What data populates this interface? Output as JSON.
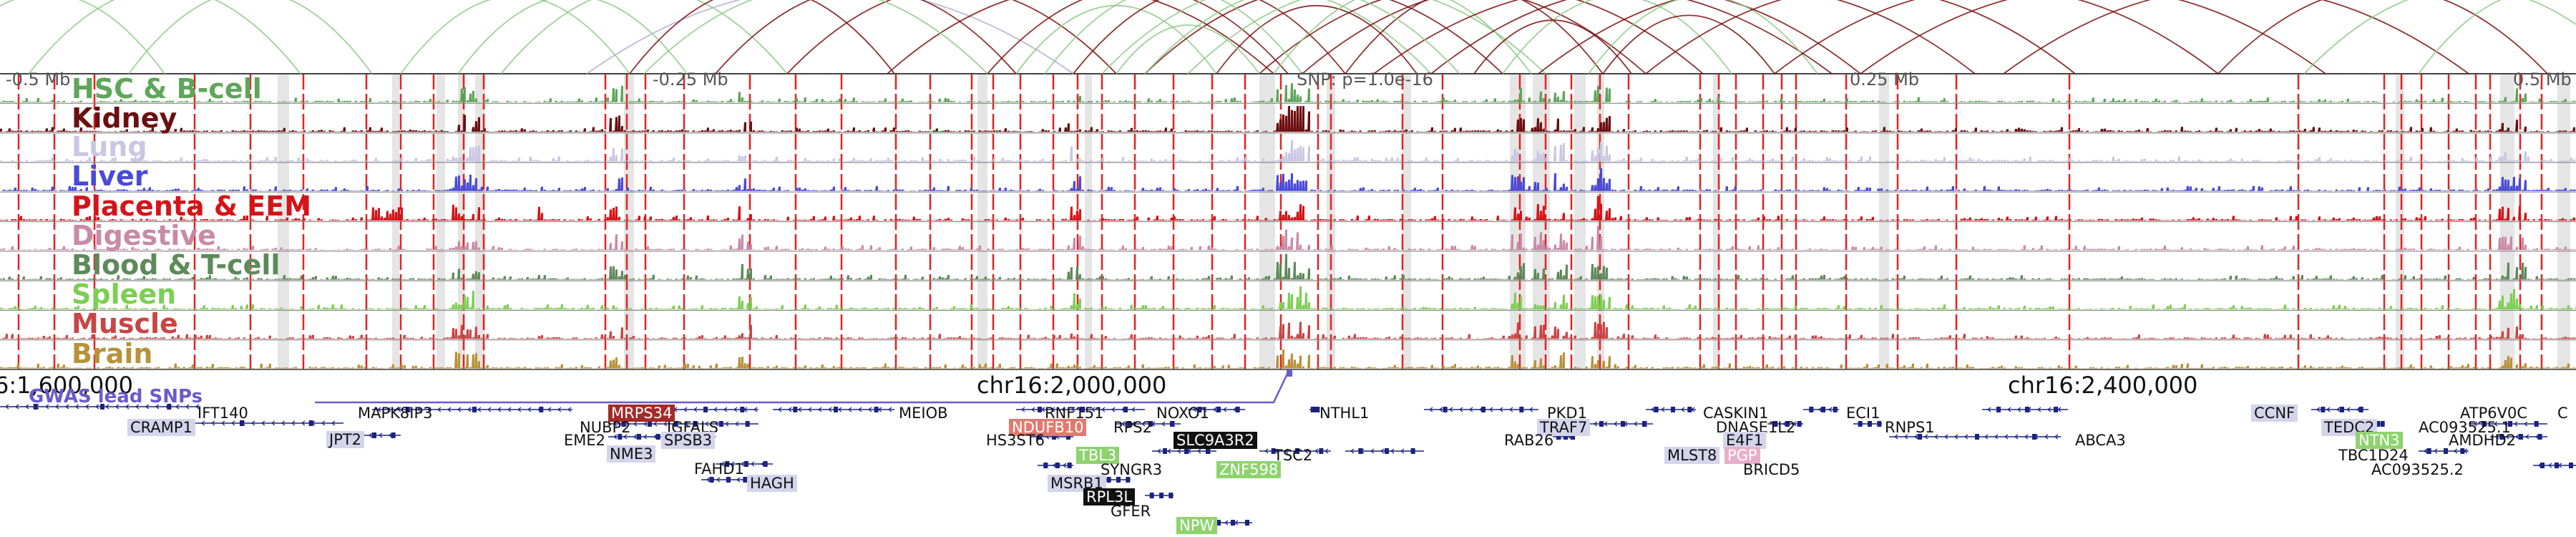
{
  "region": {
    "snp_label": "SNP: p=1.0e-16",
    "scale_labels": [
      "-0.5 Mb",
      "-0.25 Mb",
      "0.25 Mb",
      "0.5 Mb"
    ],
    "coord_labels": [
      "6:1,600,000",
      "chr16:2,000,000",
      "chr16:2,400,000"
    ],
    "snp_track_label": "GWAS lead SNPs"
  },
  "tracks": [
    {
      "name": "HSC & B-cell",
      "color": "#5fa55a"
    },
    {
      "name": "Kidney",
      "color": "#6b0f12"
    },
    {
      "name": "Lung",
      "color": "#c9c7e3"
    },
    {
      "name": "Liver",
      "color": "#4a4ad8"
    },
    {
      "name": "Placenta & EEM",
      "color": "#d41418"
    },
    {
      "name": "Digestive",
      "color": "#c98aa6"
    },
    {
      "name": "Blood & T-cell",
      "color": "#5d8a5a"
    },
    {
      "name": "Spleen",
      "color": "#7ccf52"
    },
    {
      "name": "Muscle",
      "color": "#c94545"
    },
    {
      "name": "Brain",
      "color": "#b8923a"
    }
  ],
  "genes": [
    {
      "name": "IFT140",
      "hl": ""
    },
    {
      "name": "CRAMP1",
      "hl": "lav"
    },
    {
      "name": "MAPK8IP3",
      "hl": ""
    },
    {
      "name": "JPT2",
      "hl": "lav"
    },
    {
      "name": "MRPS34",
      "hl": "red"
    },
    {
      "name": "NUBP2",
      "hl": ""
    },
    {
      "name": "IGFALS",
      "hl": ""
    },
    {
      "name": "EME2",
      "hl": ""
    },
    {
      "name": "SPSB3",
      "hl": "lav"
    },
    {
      "name": "NME3",
      "hl": "lav"
    },
    {
      "name": "FAHD1",
      "hl": ""
    },
    {
      "name": "HAGH",
      "hl": "lav"
    },
    {
      "name": "MEIOB",
      "hl": ""
    },
    {
      "name": "RNF151",
      "hl": ""
    },
    {
      "name": "NOXO1",
      "hl": ""
    },
    {
      "name": "NDUFB10",
      "hl": "salmon"
    },
    {
      "name": "RPS2",
      "hl": ""
    },
    {
      "name": "HS3ST6",
      "hl": ""
    },
    {
      "name": "TBL3",
      "hl": "green"
    },
    {
      "name": "SYNGR3",
      "hl": ""
    },
    {
      "name": "MSRB1",
      "hl": "lav"
    },
    {
      "name": "RPL3L",
      "hl": "black"
    },
    {
      "name": "GFER",
      "hl": ""
    },
    {
      "name": "NPW",
      "hl": "green"
    },
    {
      "name": "SLC9A3R2",
      "hl": "black"
    },
    {
      "name": "ZNF598",
      "hl": "green"
    },
    {
      "name": "TSC2",
      "hl": ""
    },
    {
      "name": "NTHL1",
      "hl": ""
    },
    {
      "name": "PKD1",
      "hl": ""
    },
    {
      "name": "TRAF7",
      "hl": "lav"
    },
    {
      "name": "RAB26",
      "hl": ""
    },
    {
      "name": "CASKIN1",
      "hl": ""
    },
    {
      "name": "DNASE1L2",
      "hl": ""
    },
    {
      "name": "E4F1",
      "hl": "lav"
    },
    {
      "name": "MLST8",
      "hl": "lav"
    },
    {
      "name": "PGP",
      "hl": "pink"
    },
    {
      "name": "BRICD5",
      "hl": ""
    },
    {
      "name": "ECI1",
      "hl": ""
    },
    {
      "name": "RNPS1",
      "hl": ""
    },
    {
      "name": "ABCA3",
      "hl": ""
    },
    {
      "name": "CCNF",
      "hl": "lav"
    },
    {
      "name": "TEDC2",
      "hl": "lav"
    },
    {
      "name": "NTN3",
      "hl": "green"
    },
    {
      "name": "TBC1D24",
      "hl": ""
    },
    {
      "name": "ATP6V0C",
      "hl": ""
    },
    {
      "name": "AC093525.1",
      "hl": ""
    },
    {
      "name": "AMDHD2",
      "hl": ""
    },
    {
      "name": "AC093525.2",
      "hl": ""
    },
    {
      "name": "C",
      "hl": ""
    }
  ]
}
